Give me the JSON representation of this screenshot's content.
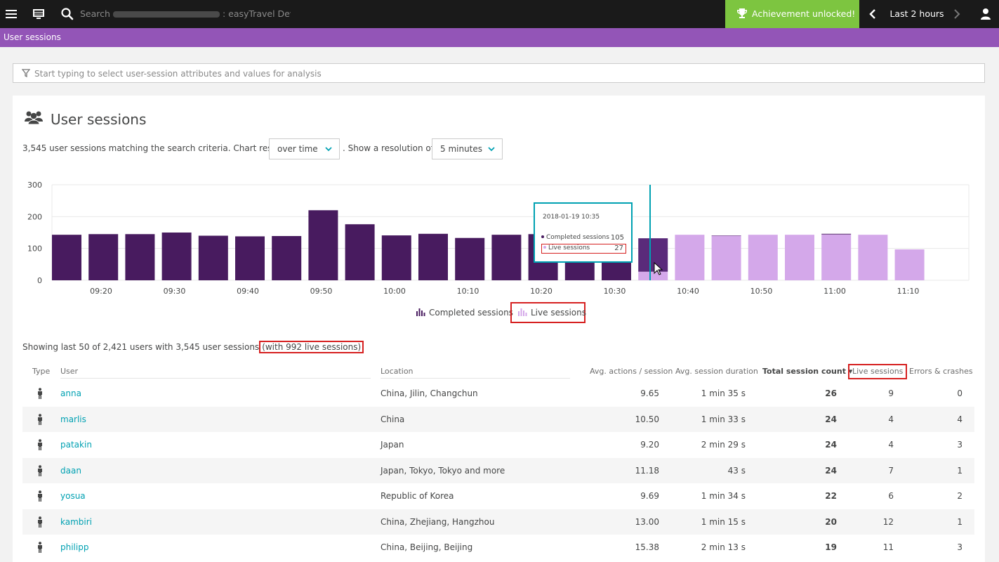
{
  "topbar": {
    "search_placeholder": "Search",
    "search_suffix": ": easyTravel Dev...",
    "achievement": "Achievement unlocked!",
    "timeframe": "Last 2 hours"
  },
  "crumb": "User sessions",
  "filter_placeholder": "Start typing to select user-session attributes and values for analysis",
  "panel": {
    "title": "User sessions",
    "summary_prefix": "3,545 user sessions matching the search criteria. Chart results",
    "chart_mode": "over time",
    "resolution_label": ". Show a resolution of",
    "resolution": "5 minutes"
  },
  "chart_data": {
    "type": "bar",
    "stacked": true,
    "yticks": [
      0,
      100,
      200,
      300
    ],
    "ylim": [
      0,
      300
    ],
    "xticks": [
      "09:20",
      "09:30",
      "09:40",
      "09:50",
      "10:00",
      "10:10",
      "10:20",
      "10:30",
      "10:40",
      "10:50",
      "11:00",
      "11:10"
    ],
    "series": [
      {
        "name": "Completed sessions",
        "color": "#481b5f",
        "values": [
          143,
          145,
          145,
          150,
          140,
          138,
          139,
          220,
          176,
          141,
          146,
          133,
          143,
          145,
          140,
          140,
          105,
          0,
          1,
          0,
          0,
          2,
          0,
          0
        ]
      },
      {
        "name": "Live sessions",
        "color": "#d4a8ea",
        "values": [
          0,
          0,
          0,
          0,
          0,
          0,
          0,
          0,
          0,
          0,
          0,
          0,
          0,
          0,
          0,
          0,
          27,
          143,
          140,
          143,
          143,
          144,
          143,
          97
        ]
      }
    ],
    "highlight_color": "#5a2a7a",
    "highlight_index": 16,
    "cursor_color": "#00a1b2",
    "legend": [
      "Completed sessions",
      "Live sessions"
    ],
    "legend_placement": "bottom"
  },
  "tooltip": {
    "date": "2018-01-19 10:35",
    "completed_label": "Completed sessions",
    "completed_value": "105",
    "live_label": "Live sessions",
    "live_value": "27"
  },
  "showing_prefix": "Showing last 50 of 2,421 users with 3,545 user sessions",
  "showing_live": "(with 992 live sessions)",
  "table": {
    "headers": {
      "type": "Type",
      "user": "User",
      "location": "Location",
      "avg_actions": "Avg. actions / session",
      "avg_duration": "Avg. session duration",
      "total": "Total session count ▾",
      "live": "Live sessions",
      "errors": "Errors & crashes"
    },
    "rows": [
      {
        "user": "anna",
        "location": "China, Jilin, Changchun",
        "actions": "9.65",
        "duration": "1 min 35 s",
        "total": "26",
        "live": "9",
        "errors": "0"
      },
      {
        "user": "marlis",
        "location": "China",
        "actions": "10.50",
        "duration": "1 min 33 s",
        "total": "24",
        "live": "4",
        "errors": "4"
      },
      {
        "user": "patakin",
        "location": "Japan",
        "actions": "9.20",
        "duration": "2 min 29 s",
        "total": "24",
        "live": "4",
        "errors": "3"
      },
      {
        "user": "daan",
        "location": "Japan, Tokyo, Tokyo and more",
        "actions": "11.18",
        "duration": "43 s",
        "total": "24",
        "live": "7",
        "errors": "1"
      },
      {
        "user": "yosua",
        "location": "Republic of Korea",
        "actions": "9.69",
        "duration": "1 min 34 s",
        "total": "22",
        "live": "6",
        "errors": "2"
      },
      {
        "user": "kambiri",
        "location": "China, Zhejiang, Hangzhou",
        "actions": "13.00",
        "duration": "1 min 15 s",
        "total": "20",
        "live": "12",
        "errors": "1"
      },
      {
        "user": "philipp",
        "location": "China, Beijing, Beijing",
        "actions": "15.38",
        "duration": "2 min 13 s",
        "total": "19",
        "live": "11",
        "errors": "3"
      }
    ]
  }
}
